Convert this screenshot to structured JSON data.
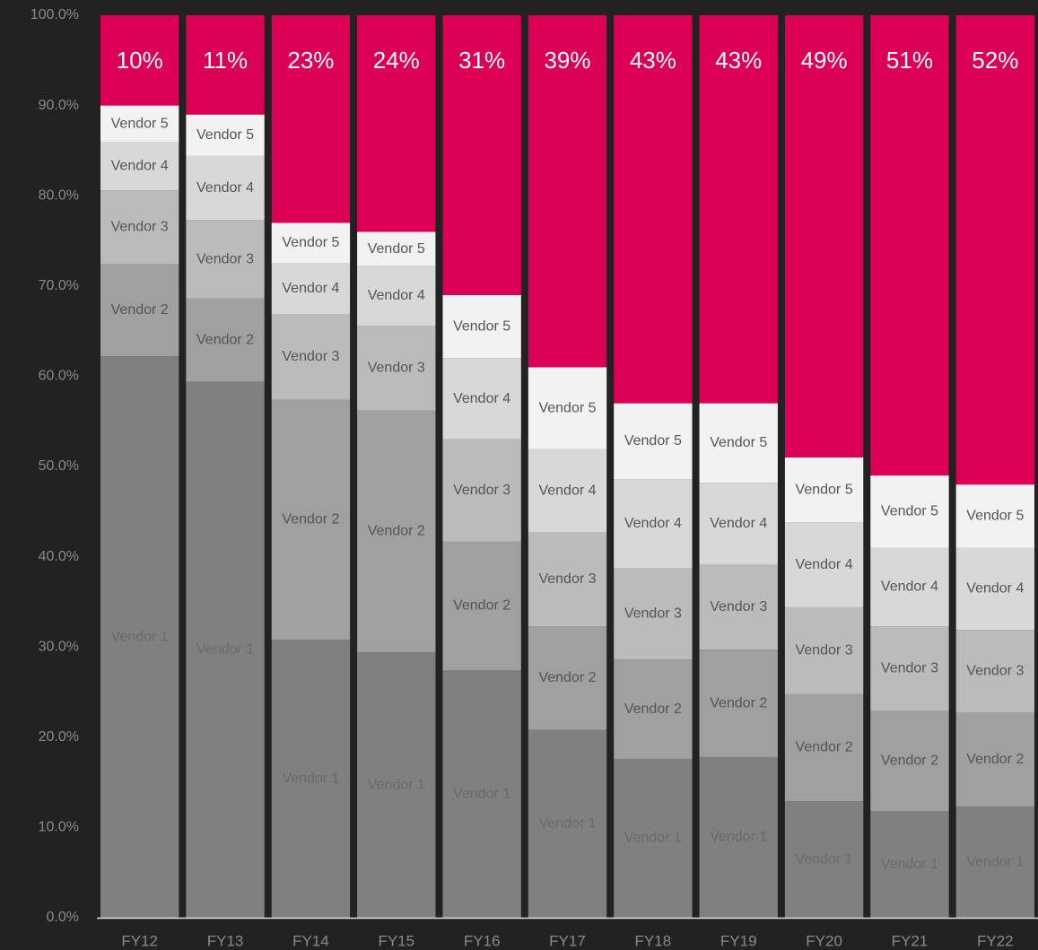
{
  "chart_data": {
    "type": "stacked_bar",
    "categories": [
      "FY12",
      "FY13",
      "FY14",
      "FY15",
      "FY16",
      "FY17",
      "FY18",
      "FY19",
      "FY20",
      "FY21",
      "FY22"
    ],
    "series": [
      {
        "name": "Vendor 1",
        "color": "#808080",
        "values": [
          62.2,
          59.4,
          30.8,
          29.4,
          27.4,
          20.8,
          17.6,
          17.8,
          12.9,
          11.8,
          12.3
        ]
      },
      {
        "name": "Vendor 2",
        "color": "#a0a0a0",
        "values": [
          10.2,
          9.2,
          26.6,
          26.8,
          14.3,
          11.5,
          11.0,
          11.9,
          11.9,
          11.1,
          10.4
        ]
      },
      {
        "name": "Vendor 3",
        "color": "#bbbbbb",
        "values": [
          8.2,
          8.7,
          9.5,
          9.4,
          11.3,
          10.4,
          10.1,
          9.4,
          9.6,
          9.4,
          9.2
        ]
      },
      {
        "name": "Vendor 4",
        "color": "#d8d8d8",
        "values": [
          5.3,
          7.1,
          5.6,
          6.6,
          9.0,
          9.2,
          9.9,
          9.1,
          9.4,
          8.7,
          9.1
        ]
      },
      {
        "name": "Vendor 5",
        "color": "#f2f2f2",
        "values": [
          4.1,
          4.6,
          4.5,
          3.8,
          7.0,
          9.1,
          8.4,
          8.8,
          7.2,
          8.0,
          7.0
        ]
      },
      {
        "color": "#db0055",
        "values": [
          10,
          11,
          23,
          24,
          31,
          39,
          43,
          43,
          49,
          51,
          52
        ],
        "value_labels": [
          "10%",
          "11%",
          "23%",
          "24%",
          "31%",
          "39%",
          "43%",
          "43%",
          "49%",
          "51%",
          "52%"
        ]
      }
    ],
    "ylim": [
      0,
      100
    ],
    "yticks": [
      {
        "value": 0,
        "label": "0.0%"
      },
      {
        "value": 10,
        "label": "10.0%"
      },
      {
        "value": 20,
        "label": "20.0%"
      },
      {
        "value": 30,
        "label": "30.0%"
      },
      {
        "value": 40,
        "label": "40.0%"
      },
      {
        "value": 50,
        "label": "50.0%"
      },
      {
        "value": 60,
        "label": "60.0%"
      },
      {
        "value": 70,
        "label": "70.0%"
      },
      {
        "value": 80,
        "label": "80.0%"
      },
      {
        "value": 90,
        "label": "90.0%"
      },
      {
        "value": 100,
        "label": "100.0%"
      }
    ],
    "grid": false
  }
}
